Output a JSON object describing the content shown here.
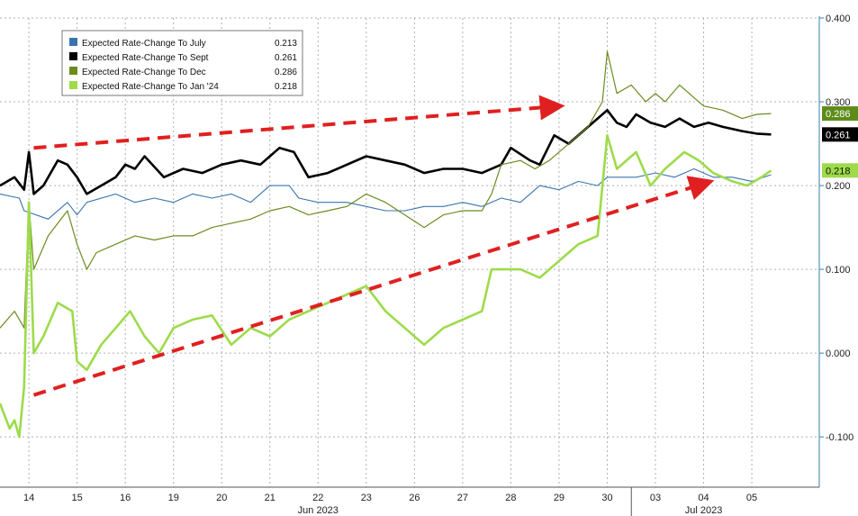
{
  "chart_data": {
    "type": "line",
    "title": "",
    "xlabel": "",
    "ylabel": "",
    "ylim": [
      -0.16,
      0.4
    ],
    "y_axis_position": "right",
    "y_ticks": [
      {
        "value": 0.4,
        "label": "0.400"
      },
      {
        "value": 0.3,
        "label": "0.300"
      },
      {
        "value": 0.2,
        "label": "0.200"
      },
      {
        "value": 0.1,
        "label": "0.100"
      },
      {
        "value": 0.0,
        "label": "0.000"
      },
      {
        "value": -0.1,
        "label": "-0.100"
      }
    ],
    "grid": true,
    "x_ticks": [
      {
        "t": 0,
        "label": "14"
      },
      {
        "t": 1,
        "label": "15"
      },
      {
        "t": 2,
        "label": "16"
      },
      {
        "t": 3,
        "label": "19"
      },
      {
        "t": 4,
        "label": "20"
      },
      {
        "t": 5,
        "label": "21"
      },
      {
        "t": 6,
        "label": "22"
      },
      {
        "t": 7,
        "label": "23"
      },
      {
        "t": 8,
        "label": "26"
      },
      {
        "t": 9,
        "label": "27"
      },
      {
        "t": 10,
        "label": "28"
      },
      {
        "t": 11,
        "label": "29"
      },
      {
        "t": 12,
        "label": "30"
      },
      {
        "t": 13,
        "label": "03"
      },
      {
        "t": 14,
        "label": "04"
      },
      {
        "t": 15,
        "label": "05"
      }
    ],
    "xlim": [
      -0.6,
      16.4
    ],
    "month_labels": [
      {
        "label": "Jun 2023",
        "t": 6
      },
      {
        "label": "Jul 2023",
        "t": 14
      }
    ],
    "month_boundary_t": 12.5,
    "legend_position": "top-left",
    "series": [
      {
        "name": "Expected Rate-Change To July",
        "legend_value": "0.213",
        "color": "#3a74b0",
        "width": 1.1,
        "points": [
          [
            -0.6,
            0.19
          ],
          [
            -0.2,
            0.185
          ],
          [
            -0.1,
            0.17
          ],
          [
            0.4,
            0.16
          ],
          [
            0.8,
            0.18
          ],
          [
            1.0,
            0.165
          ],
          [
            1.2,
            0.18
          ],
          [
            1.8,
            0.19
          ],
          [
            2.2,
            0.18
          ],
          [
            2.6,
            0.185
          ],
          [
            3.0,
            0.18
          ],
          [
            3.4,
            0.19
          ],
          [
            3.8,
            0.185
          ],
          [
            4.2,
            0.19
          ],
          [
            4.6,
            0.18
          ],
          [
            5.0,
            0.2
          ],
          [
            5.4,
            0.2
          ],
          [
            5.6,
            0.185
          ],
          [
            6.0,
            0.18
          ],
          [
            6.6,
            0.18
          ],
          [
            7.0,
            0.175
          ],
          [
            7.4,
            0.17
          ],
          [
            7.8,
            0.17
          ],
          [
            8.2,
            0.175
          ],
          [
            8.6,
            0.175
          ],
          [
            9.0,
            0.18
          ],
          [
            9.4,
            0.175
          ],
          [
            9.8,
            0.185
          ],
          [
            10.2,
            0.18
          ],
          [
            10.6,
            0.2
          ],
          [
            11.0,
            0.195
          ],
          [
            11.4,
            0.205
          ],
          [
            11.8,
            0.2
          ],
          [
            12.0,
            0.21
          ],
          [
            12.6,
            0.21
          ],
          [
            13.0,
            0.215
          ],
          [
            13.4,
            0.21
          ],
          [
            13.8,
            0.22
          ],
          [
            14.2,
            0.21
          ],
          [
            14.6,
            0.21
          ],
          [
            15.0,
            0.205
          ],
          [
            15.4,
            0.213
          ]
        ]
      },
      {
        "name": "Expected Rate-Change To Sept",
        "legend_value": "0.261",
        "color": "#000000",
        "width": 2.6,
        "points": [
          [
            -0.6,
            0.2
          ],
          [
            -0.3,
            0.21
          ],
          [
            -0.1,
            0.195
          ],
          [
            0.0,
            0.24
          ],
          [
            0.1,
            0.19
          ],
          [
            0.3,
            0.2
          ],
          [
            0.6,
            0.23
          ],
          [
            0.8,
            0.225
          ],
          [
            1.0,
            0.21
          ],
          [
            1.2,
            0.19
          ],
          [
            1.5,
            0.2
          ],
          [
            1.8,
            0.21
          ],
          [
            2.0,
            0.225
          ],
          [
            2.2,
            0.22
          ],
          [
            2.4,
            0.235
          ],
          [
            2.8,
            0.21
          ],
          [
            3.2,
            0.22
          ],
          [
            3.6,
            0.215
          ],
          [
            4.0,
            0.225
          ],
          [
            4.4,
            0.23
          ],
          [
            4.8,
            0.225
          ],
          [
            5.0,
            0.235
          ],
          [
            5.2,
            0.245
          ],
          [
            5.5,
            0.24
          ],
          [
            5.8,
            0.21
          ],
          [
            6.2,
            0.215
          ],
          [
            6.6,
            0.225
          ],
          [
            7.0,
            0.235
          ],
          [
            7.4,
            0.23
          ],
          [
            7.8,
            0.225
          ],
          [
            8.2,
            0.215
          ],
          [
            8.6,
            0.22
          ],
          [
            9.0,
            0.22
          ],
          [
            9.4,
            0.215
          ],
          [
            9.8,
            0.225
          ],
          [
            10.0,
            0.245
          ],
          [
            10.4,
            0.23
          ],
          [
            10.6,
            0.225
          ],
          [
            10.9,
            0.26
          ],
          [
            11.2,
            0.25
          ],
          [
            11.5,
            0.265
          ],
          [
            11.8,
            0.28
          ],
          [
            12.0,
            0.29
          ],
          [
            12.2,
            0.275
          ],
          [
            12.4,
            0.27
          ],
          [
            12.6,
            0.285
          ],
          [
            12.9,
            0.275
          ],
          [
            13.2,
            0.27
          ],
          [
            13.5,
            0.28
          ],
          [
            13.8,
            0.27
          ],
          [
            14.1,
            0.275
          ],
          [
            14.4,
            0.27
          ],
          [
            14.8,
            0.265
          ],
          [
            15.1,
            0.262
          ],
          [
            15.4,
            0.261
          ]
        ]
      },
      {
        "name": "Expected Rate-Change To Dec",
        "legend_value": "0.286",
        "color": "#6a8c1e",
        "width": 1.2,
        "points": [
          [
            -0.6,
            0.03
          ],
          [
            -0.3,
            0.05
          ],
          [
            -0.1,
            0.03
          ],
          [
            0.0,
            0.18
          ],
          [
            0.1,
            0.1
          ],
          [
            0.4,
            0.14
          ],
          [
            0.8,
            0.17
          ],
          [
            1.0,
            0.13
          ],
          [
            1.2,
            0.1
          ],
          [
            1.4,
            0.12
          ],
          [
            1.8,
            0.13
          ],
          [
            2.2,
            0.14
          ],
          [
            2.6,
            0.135
          ],
          [
            3.0,
            0.14
          ],
          [
            3.4,
            0.14
          ],
          [
            3.8,
            0.15
          ],
          [
            4.2,
            0.155
          ],
          [
            4.6,
            0.16
          ],
          [
            5.0,
            0.17
          ],
          [
            5.4,
            0.175
          ],
          [
            5.8,
            0.165
          ],
          [
            6.2,
            0.17
          ],
          [
            6.6,
            0.175
          ],
          [
            7.0,
            0.19
          ],
          [
            7.4,
            0.18
          ],
          [
            7.8,
            0.165
          ],
          [
            8.2,
            0.15
          ],
          [
            8.6,
            0.165
          ],
          [
            9.0,
            0.17
          ],
          [
            9.4,
            0.17
          ],
          [
            9.6,
            0.19
          ],
          [
            9.8,
            0.225
          ],
          [
            10.2,
            0.23
          ],
          [
            10.5,
            0.22
          ],
          [
            10.8,
            0.23
          ],
          [
            11.0,
            0.24
          ],
          [
            11.3,
            0.255
          ],
          [
            11.6,
            0.27
          ],
          [
            11.9,
            0.3
          ],
          [
            12.0,
            0.36
          ],
          [
            12.2,
            0.31
          ],
          [
            12.5,
            0.32
          ],
          [
            12.8,
            0.3
          ],
          [
            13.0,
            0.31
          ],
          [
            13.2,
            0.3
          ],
          [
            13.5,
            0.32
          ],
          [
            13.8,
            0.305
          ],
          [
            14.0,
            0.295
          ],
          [
            14.4,
            0.29
          ],
          [
            14.8,
            0.28
          ],
          [
            15.1,
            0.285
          ],
          [
            15.4,
            0.286
          ]
        ]
      },
      {
        "name": "Expected Rate-Change To Jan '24",
        "legend_value": "0.218",
        "color": "#9ddb4a",
        "width": 2.6,
        "points": [
          [
            -0.6,
            -0.06
          ],
          [
            -0.4,
            -0.09
          ],
          [
            -0.3,
            -0.08
          ],
          [
            -0.2,
            -0.1
          ],
          [
            -0.1,
            -0.04
          ],
          [
            0.0,
            0.18
          ],
          [
            0.1,
            0.0
          ],
          [
            0.3,
            0.02
          ],
          [
            0.6,
            0.06
          ],
          [
            0.9,
            0.05
          ],
          [
            1.0,
            -0.01
          ],
          [
            1.2,
            -0.02
          ],
          [
            1.5,
            0.01
          ],
          [
            1.8,
            0.03
          ],
          [
            2.1,
            0.05
          ],
          [
            2.4,
            0.02
          ],
          [
            2.7,
            0.0
          ],
          [
            3.0,
            0.03
          ],
          [
            3.4,
            0.04
          ],
          [
            3.8,
            0.045
          ],
          [
            4.2,
            0.01
          ],
          [
            4.6,
            0.03
          ],
          [
            5.0,
            0.02
          ],
          [
            5.4,
            0.04
          ],
          [
            5.8,
            0.05
          ],
          [
            6.2,
            0.06
          ],
          [
            6.6,
            0.07
          ],
          [
            7.0,
            0.08
          ],
          [
            7.4,
            0.05
          ],
          [
            7.8,
            0.03
          ],
          [
            8.2,
            0.01
          ],
          [
            8.6,
            0.03
          ],
          [
            9.0,
            0.04
          ],
          [
            9.4,
            0.05
          ],
          [
            9.6,
            0.1
          ],
          [
            9.8,
            0.1
          ],
          [
            10.2,
            0.1
          ],
          [
            10.6,
            0.09
          ],
          [
            11.0,
            0.11
          ],
          [
            11.4,
            0.13
          ],
          [
            11.8,
            0.14
          ],
          [
            12.0,
            0.26
          ],
          [
            12.2,
            0.22
          ],
          [
            12.6,
            0.24
          ],
          [
            12.9,
            0.2
          ],
          [
            13.2,
            0.22
          ],
          [
            13.6,
            0.24
          ],
          [
            13.9,
            0.23
          ],
          [
            14.2,
            0.215
          ],
          [
            14.6,
            0.205
          ],
          [
            14.9,
            0.2
          ],
          [
            15.2,
            0.21
          ],
          [
            15.4,
            0.218
          ]
        ]
      }
    ],
    "arrows": [
      {
        "from": [
          0.1,
          0.245
        ],
        "to": [
          11.05,
          0.295
        ],
        "color": "#e02020"
      },
      {
        "from": [
          0.1,
          -0.05
        ],
        "to": [
          14.15,
          0.205
        ],
        "color": "#e02020"
      }
    ]
  }
}
